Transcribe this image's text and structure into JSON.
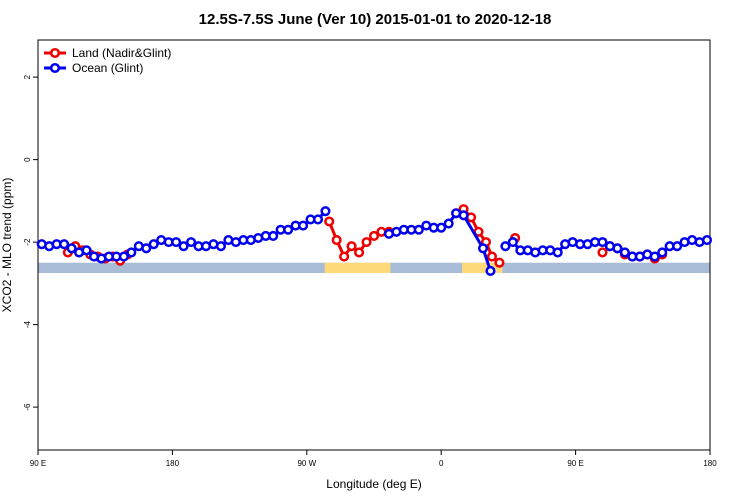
{
  "chart_data": {
    "type": "line",
    "title": "12.5S-7.5S June (Ver 10)   2015-01-01 to 2020-12-18",
    "x_label": "Longitude (deg E)",
    "y_label": "XCO2 - MLO trend (ppm)",
    "xlim": [
      90,
      540
    ],
    "ylim": [
      -7.04,
      2.9
    ],
    "xticks": [
      {
        "value": 90,
        "label": "90 E"
      },
      {
        "value": 180,
        "label": "180"
      },
      {
        "value": 270,
        "label": "90 W"
      },
      {
        "value": 360,
        "label": "0"
      },
      {
        "value": 450,
        "label": "90 E"
      },
      {
        "value": 540,
        "label": "180"
      }
    ],
    "yticks": [
      -6,
      -4,
      -2,
      0,
      2
    ],
    "legend": "top-left",
    "surface_band": {
      "range": [
        -2.5,
        -2.75
      ],
      "ocean_color": "#a8bcd8",
      "land_color": "#fdd97a",
      "land_spans": [
        [
          282,
          326
        ],
        [
          374,
          401
        ]
      ]
    },
    "series": [
      {
        "name": "Land (Nadir&Glint)",
        "color": "#ee0000",
        "x": [
          110,
          115,
          120,
          125,
          130,
          135,
          140,
          145,
          150,
          220,
          285,
          290,
          295,
          300,
          305,
          310,
          315,
          320,
          325,
          350,
          370,
          375,
          380,
          385,
          390,
          394,
          399,
          404,
          409.5,
          440,
          468,
          473,
          478,
          483,
          488,
          493,
          498,
          503,
          508
        ],
        "values": [
          -2.25,
          -2.1,
          -2.2,
          -2.3,
          -2.35,
          -2.4,
          -2.35,
          -2.45,
          -2.3,
          null,
          -1.5,
          -1.95,
          -2.35,
          -2.1,
          -2.25,
          -2.0,
          -1.85,
          -1.75,
          -1.75,
          null,
          -1.3,
          -1.2,
          -1.4,
          -1.75,
          -2.0,
          -2.35,
          -2.5,
          null,
          -1.9,
          null,
          -2.25,
          -2.1,
          -2.15,
          -2.3,
          -2.35,
          -2.35,
          -2.3,
          -2.4,
          -2.3
        ]
      },
      {
        "name": "Ocean (Glint)",
        "color": "#0000ee",
        "x": [
          92.5,
          97.5,
          102.5,
          107.5,
          112.5,
          117.5,
          122.5,
          127.5,
          132.5,
          137.5,
          142.5,
          147.5,
          152.5,
          157.5,
          162.5,
          167.5,
          172.5,
          177.5,
          182.5,
          187.5,
          192.5,
          197.5,
          202.5,
          207.5,
          212.5,
          217.5,
          222.5,
          227.5,
          232.5,
          237.5,
          242.5,
          247.5,
          252.5,
          257.5,
          262.5,
          267.5,
          272.5,
          277.5,
          282.5,
          300,
          325,
          330,
          335,
          340,
          345,
          350,
          355,
          360,
          365,
          370,
          375,
          388,
          393,
          398,
          403,
          408,
          413,
          418,
          423,
          428,
          433,
          438,
          443,
          448,
          453,
          458,
          463,
          468,
          473,
          478,
          483,
          488,
          493,
          498,
          503,
          508,
          513,
          518,
          523,
          528,
          533,
          538
        ],
        "values": [
          -2.05,
          -2.1,
          -2.05,
          -2.05,
          -2.15,
          -2.25,
          -2.2,
          -2.35,
          -2.4,
          -2.35,
          -2.35,
          -2.35,
          -2.25,
          -2.1,
          -2.15,
          -2.05,
          -1.95,
          -2.0,
          -2.0,
          -2.1,
          -2.0,
          -2.1,
          -2.1,
          -2.05,
          -2.1,
          -1.95,
          -2.0,
          -1.95,
          -1.95,
          -1.9,
          -1.85,
          -1.85,
          -1.7,
          -1.7,
          -1.6,
          -1.6,
          -1.45,
          -1.45,
          -1.25,
          null,
          -1.8,
          -1.75,
          -1.7,
          -1.7,
          -1.7,
          -1.6,
          -1.65,
          -1.65,
          -1.55,
          -1.3,
          -1.35,
          -2.15,
          -2.7,
          null,
          -2.1,
          -2.0,
          -2.2,
          -2.2,
          -2.25,
          -2.2,
          -2.2,
          -2.25,
          -2.05,
          -2.0,
          -2.05,
          -2.05,
          -2.0,
          -2.0,
          -2.1,
          -2.15,
          -2.25,
          -2.35,
          -2.35,
          -2.3,
          -2.35,
          -2.25,
          -2.1,
          -2.1,
          -2.0,
          -1.95,
          -2.0,
          -1.95
        ]
      }
    ]
  }
}
